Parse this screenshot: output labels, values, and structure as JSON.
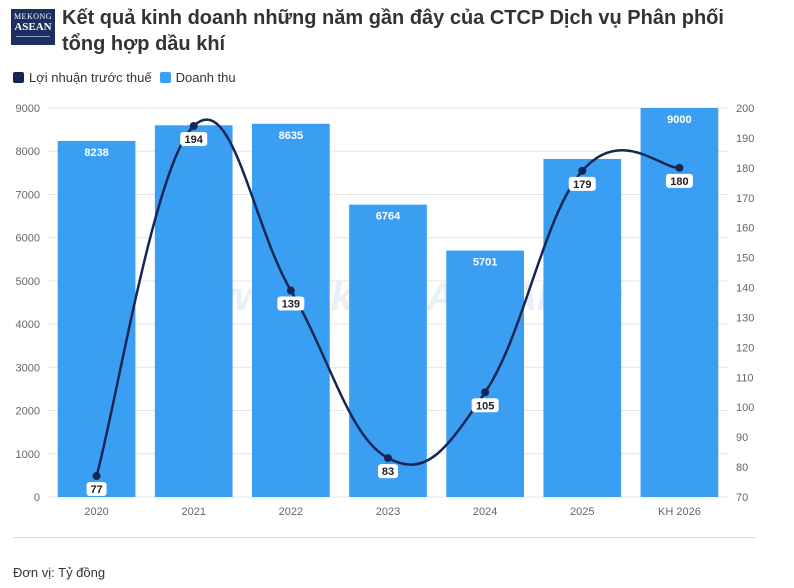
{
  "logo": {
    "line1": "MEKONG",
    "line2": "ASEAN"
  },
  "title": "Kết quả kinh doanh những năm gần đây của CTCP Dịch vụ Phân phối tổng hợp dầu khí",
  "watermark": "www.MekongASEAN.vn",
  "footer": "Đơn vị: Tỷ đồng",
  "colors": {
    "bar": "#3a9ef3",
    "line": "#152654",
    "grid": "#e6e6e6"
  },
  "chart_data": {
    "type": "bar",
    "categories": [
      "2020",
      "2021",
      "2022",
      "2023",
      "2024",
      "2025",
      "KH 2026"
    ],
    "series": [
      {
        "name": "Doanh thu",
        "type": "bar",
        "axis": "left",
        "values": [
          8238,
          8600,
          8635,
          6764,
          5701,
          7820,
          9000
        ],
        "labels": [
          "8238",
          "",
          "8635",
          "6764",
          "5701",
          "",
          "9000"
        ]
      },
      {
        "name": "Lợi nhuận trước thuế",
        "type": "line",
        "axis": "right",
        "values": [
          77,
          194,
          139,
          83,
          105,
          179,
          180
        ],
        "labels": [
          "77",
          "194",
          "139",
          "83",
          "105",
          "179",
          "180"
        ]
      }
    ],
    "y_left": {
      "min": 0,
      "max": 9000,
      "ticks": [
        "0",
        "1000",
        "2000",
        "3000",
        "4000",
        "5000",
        "6000",
        "7000",
        "8000",
        "9000"
      ]
    },
    "y_right": {
      "min": 70,
      "max": 200,
      "ticks": [
        "70",
        "80",
        "90",
        "100",
        "110",
        "120",
        "130",
        "140",
        "150",
        "160",
        "170",
        "180",
        "190",
        "200"
      ]
    },
    "legend_position": "top-left",
    "grid": true
  }
}
